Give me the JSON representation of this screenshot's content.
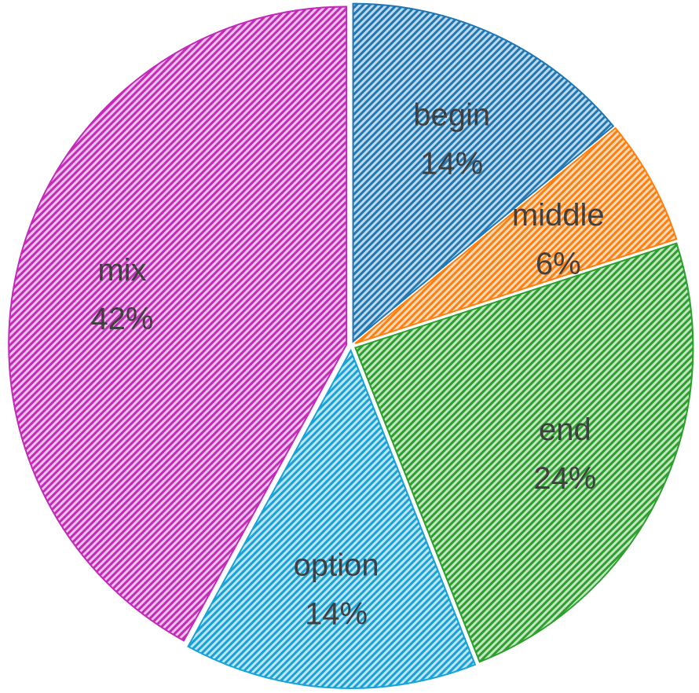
{
  "chart_data": {
    "type": "pie",
    "title": "",
    "start_angle_deg": 0,
    "direction": "clockwise",
    "slices": [
      {
        "label": "begin",
        "percent_label": "14%",
        "value": 14,
        "color": "#1f77b4"
      },
      {
        "label": "middle",
        "percent_label": "6%",
        "value": 6,
        "color": "#ff7f0e"
      },
      {
        "label": "end",
        "percent_label": "24%",
        "value": 24,
        "color": "#2ca02c"
      },
      {
        "label": "option",
        "percent_label": "14%",
        "value": 14,
        "color": "#17a2d8"
      },
      {
        "label": "mix",
        "percent_label": "42%",
        "value": 42,
        "color": "#c32ab8"
      }
    ],
    "fill_style": "diagonal hatch"
  }
}
